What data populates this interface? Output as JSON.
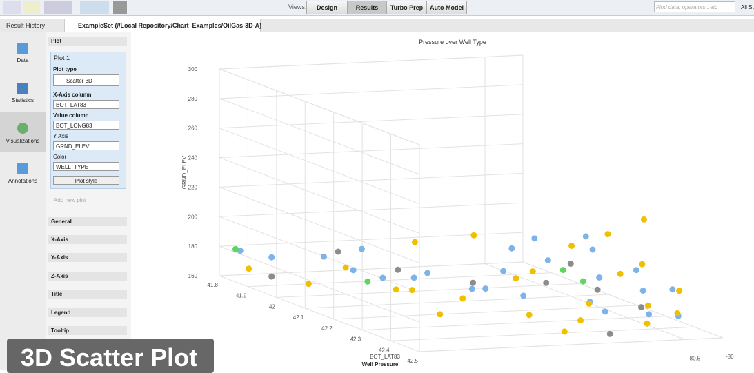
{
  "toolbar": {
    "views_label": "Views:",
    "views": [
      "Design",
      "Results",
      "Turbo Prep",
      "Auto Model"
    ],
    "search_placeholder": "Find data, operators...etc",
    "search_scope": "All St"
  },
  "tabs": [
    "Result History",
    "ExampleSet (//Local Repository/Chart_Examples/OilGas-3D-A)"
  ],
  "nav": [
    "Data",
    "Statistics",
    "Visualizations",
    "Annotations"
  ],
  "panel": {
    "header": "Plot",
    "plot_name": "Plot 1",
    "fields": [
      {
        "label": "Plot type",
        "value": "Scatter 3D"
      },
      {
        "label": "X-Axis column",
        "value": "BOT_LAT83"
      },
      {
        "label": "Value column",
        "value": "BOT_LONG83"
      },
      {
        "label": "Y Axis",
        "value": "GRND_ELEV"
      },
      {
        "label": "Color",
        "value": "WELL_TYPE"
      }
    ],
    "plot_style": "Plot style",
    "add_plot": "Add new plot",
    "sections": [
      "General",
      "X-Axis",
      "Y-Axis",
      "Z-Axis",
      "Title",
      "Legend",
      "Tooltip"
    ]
  },
  "chart_data": {
    "type": "scatter3d",
    "title": "Pressure over Well Type",
    "x_label": "BOT_LAT83",
    "y_label": "GRND_ELEV",
    "caption": "Well Pressure",
    "xlim": [
      41.8,
      42.5
    ],
    "xticks": [
      41.8,
      41.9,
      42,
      42.1,
      42.2,
      42.3,
      42.4,
      42.5
    ],
    "ylim": [
      160,
      300
    ],
    "yticks": [
      160,
      180,
      200,
      220,
      240,
      260,
      280,
      300
    ],
    "zlim": [
      -84,
      -80
    ],
    "zticks": [
      -80.5,
      -80
    ],
    "grid": true,
    "series": [
      {
        "color": "#7db3e8",
        "x": [
          41.85,
          41.9,
          41.95,
          42.0,
          41.9,
          42.05,
          42.1,
          42.2,
          42.3,
          42.1,
          42.0,
          42.2,
          42.3,
          42.15,
          42.25,
          42.05,
          42.4,
          42.35,
          41.95,
          42.1,
          42.0,
          42.2,
          41.82,
          42.3,
          42.45
        ],
        "values": [
          175,
          178,
          172,
          170,
          182,
          176,
          168,
          170,
          172,
          185,
          192,
          180,
          178,
          195,
          188,
          175,
          170,
          182,
          165,
          200,
          186,
          176,
          178,
          165,
          172
        ],
        "z": [
          -83.5,
          -83,
          -82.8,
          -82.6,
          -82.5,
          -82.2,
          -81.8,
          -81.5,
          -81,
          -80.8,
          -80.6,
          -80.5,
          -80.3,
          -80.4,
          -80.2,
          -81.2,
          -80.6,
          -80.1,
          -82,
          -80.3,
          -80.9,
          -82,
          -83.8,
          -80.8,
          -80.4
        ]
      },
      {
        "color": "#f0c000",
        "x": [
          41.85,
          41.9,
          42.05,
          42.2,
          42.3,
          42.4,
          42.35,
          42.2,
          42.1,
          42.45,
          42.5,
          42.0,
          42.3,
          42.15,
          42.25,
          42.05,
          41.95,
          42.4,
          42.5,
          42.2,
          42.35,
          42.1,
          42.45,
          41.9
        ],
        "values": [
          168,
          160,
          165,
          170,
          165,
          168,
          175,
          182,
          178,
          180,
          172,
          196,
          190,
          205,
          222,
          190,
          174,
          185,
          178,
          160,
          200,
          170,
          165,
          185
        ],
        "z": [
          -83.8,
          -83.2,
          -82.4,
          -82.3,
          -81.8,
          -81.5,
          -81.2,
          -81.6,
          -81,
          -80.8,
          -81,
          -81.4,
          -80.6,
          -80.2,
          -80.1,
          -80.3,
          -82.9,
          -80.2,
          -80.6,
          -82.6,
          -80.5,
          -82.8,
          -81.9,
          -81.8
        ]
      },
      {
        "color": "#8c8c8c",
        "x": [
          41.85,
          41.95,
          42.0,
          42.2,
          42.3,
          42.1,
          42.4,
          42.05,
          42.45
        ],
        "values": [
          162,
          185,
          175,
          178,
          180,
          182,
          175,
          168,
          162
        ],
        "z": [
          -83.5,
          -83,
          -82.4,
          -81.2,
          -80.9,
          -80.5,
          -80.7,
          -81.6,
          -81.3
        ]
      },
      {
        "color": "#5cd65c",
        "x": [
          41.83,
          42.0,
          42.25,
          42.1
        ],
        "values": [
          180,
          168,
          182,
          178
        ],
        "z": [
          -83.9,
          -82.8,
          -80.9,
          -80.6
        ]
      }
    ]
  },
  "overlay_caption": "3D Scatter Plot"
}
